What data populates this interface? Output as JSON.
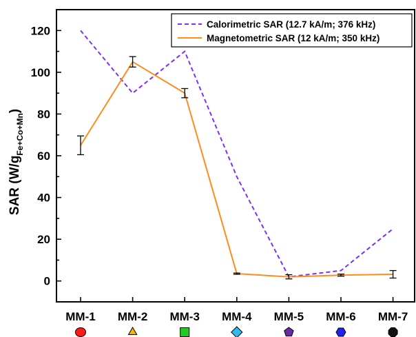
{
  "chart_data": {
    "type": "line",
    "categories": [
      "MM-1",
      "MM-2",
      "MM-3",
      "MM-4",
      "MM-5",
      "MM-6",
      "MM-7"
    ],
    "category_markers": [
      {
        "shape": "circle",
        "color": "#ff1a1a"
      },
      {
        "shape": "triangle",
        "color": "#f5b800"
      },
      {
        "shape": "square",
        "color": "#22cc22"
      },
      {
        "shape": "diamond",
        "color": "#33bbee"
      },
      {
        "shape": "pentagon",
        "color": "#6a2ca0"
      },
      {
        "shape": "hexagon",
        "color": "#2222ee"
      },
      {
        "shape": "octagon",
        "color": "#111111"
      }
    ],
    "series": [
      {
        "name": "Calorimetric SAR (12.7 kA/m; 376 kHz)",
        "values": [
          120,
          90,
          110,
          50,
          2,
          5,
          25
        ],
        "color": "#7b2fff",
        "style": "dashed",
        "error": null
      },
      {
        "name": "Magnetometric SAR (12 kA/m; 350 kHz)",
        "values": [
          65,
          105,
          90,
          3.5,
          2,
          2.8,
          3.2
        ],
        "color": "#ff8c1a",
        "style": "solid",
        "error": [
          4.5,
          2.5,
          2.2,
          0.3,
          1.0,
          0.5,
          1.8
        ]
      }
    ],
    "ylabel_main": "SAR (W/g",
    "ylabel_sub": "Fe+Co+Mn",
    "ylabel_close": ")",
    "xlabel": "",
    "ylim": [
      -10,
      130
    ],
    "yticks": [
      0,
      20,
      40,
      60,
      80,
      100,
      120
    ],
    "legend_position": "top-right",
    "grid": false
  }
}
